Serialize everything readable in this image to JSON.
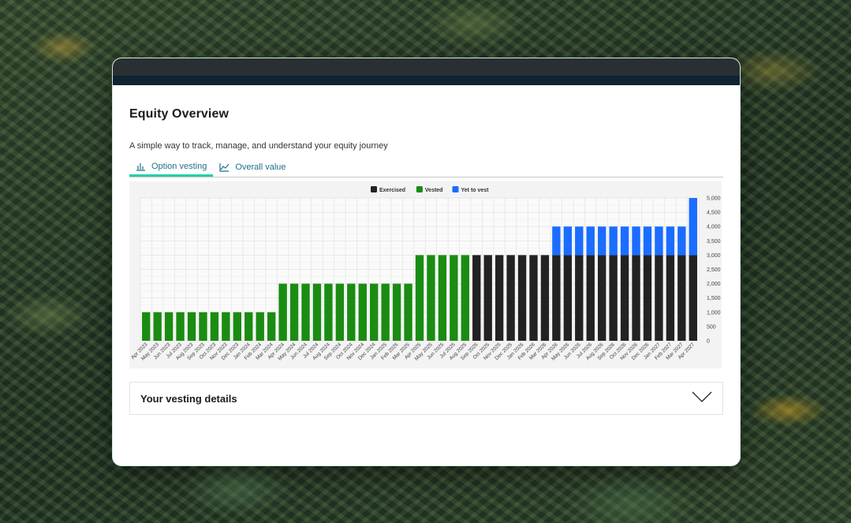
{
  "page": {
    "title": "Equity Overview",
    "subtitle": "A simple way to track, manage, and understand your equity journey"
  },
  "tabs": [
    {
      "label": "Option vesting",
      "icon": "bar-chart-icon",
      "active": true
    },
    {
      "label": "Overall value",
      "icon": "line-chart-icon",
      "active": false
    }
  ],
  "details": {
    "label": "Your vesting details",
    "icon": "chevron-down-icon"
  },
  "colors": {
    "exercised": "#222222",
    "vested": "#1a8c12",
    "yet_to_vest": "#1a6dff",
    "accent": "#1fd1a8",
    "tab_text": "#1f6f8b"
  },
  "chart_data": {
    "type": "bar",
    "stacked": true,
    "legend_position": "top",
    "grid": true,
    "y_axis_side": "right",
    "ylim": [
      0,
      5000
    ],
    "yticks": [
      "0",
      "500",
      "1,000",
      "1,500",
      "2,000",
      "2,500",
      "3,000",
      "3,500",
      "4,000",
      "4,500",
      "5,000"
    ],
    "categories": [
      "Apr 2023",
      "May 2023",
      "Jun 2023",
      "Jul 2023",
      "Aug 2023",
      "Sep 2023",
      "Oct 2023",
      "Nov 2023",
      "Dec 2023",
      "Jan 2024",
      "Feb 2024",
      "Mar 2024",
      "Apr 2024",
      "May 2024",
      "Jun 2024",
      "Jul 2024",
      "Aug 2024",
      "Sep 2024",
      "Oct 2024",
      "Nov 2024",
      "Dec 2024",
      "Jan 2025",
      "Feb 2025",
      "Mar 2025",
      "Apr 2025",
      "May 2025",
      "Jun 2025",
      "Jul 2025",
      "Aug 2025",
      "Sep 2025",
      "Oct 2025",
      "Nov 2025",
      "Dec 2025",
      "Jan 2026",
      "Feb 2026",
      "Mar 2026",
      "Apr 2026",
      "May 2026",
      "Jun 2026",
      "Jul 2026",
      "Aug 2026",
      "Sep 2026",
      "Oct 2026",
      "Nov 2026",
      "Dec 2026",
      "Jan 2027",
      "Feb 2027",
      "Mar 2027",
      "Apr 2027"
    ],
    "series": [
      {
        "name": "Exercised",
        "color": "#222222",
        "values": [
          0,
          0,
          0,
          0,
          0,
          0,
          0,
          0,
          0,
          0,
          0,
          0,
          0,
          0,
          0,
          0,
          0,
          0,
          0,
          0,
          0,
          0,
          0,
          0,
          0,
          0,
          0,
          0,
          0,
          3000,
          3000,
          3000,
          3000,
          3000,
          3000,
          3000,
          3000,
          3000,
          3000,
          3000,
          3000,
          3000,
          3000,
          3000,
          3000,
          3000,
          3000,
          3000,
          3000
        ]
      },
      {
        "name": "Vested",
        "color": "#1a8c12",
        "values": [
          1000,
          1000,
          1000,
          1000,
          1000,
          1000,
          1000,
          1000,
          1000,
          1000,
          1000,
          1000,
          2000,
          2000,
          2000,
          2000,
          2000,
          2000,
          2000,
          2000,
          2000,
          2000,
          2000,
          2000,
          3000,
          3000,
          3000,
          3000,
          3000,
          0,
          0,
          0,
          0,
          0,
          0,
          0,
          0,
          0,
          0,
          0,
          0,
          0,
          0,
          0,
          0,
          0,
          0,
          0,
          0
        ]
      },
      {
        "name": "Yet to vest",
        "color": "#1a6dff",
        "values": [
          0,
          0,
          0,
          0,
          0,
          0,
          0,
          0,
          0,
          0,
          0,
          0,
          0,
          0,
          0,
          0,
          0,
          0,
          0,
          0,
          0,
          0,
          0,
          0,
          0,
          0,
          0,
          0,
          0,
          0,
          0,
          0,
          0,
          0,
          0,
          0,
          1000,
          1000,
          1000,
          1000,
          1000,
          1000,
          1000,
          1000,
          1000,
          1000,
          1000,
          1000,
          2000
        ]
      }
    ]
  }
}
